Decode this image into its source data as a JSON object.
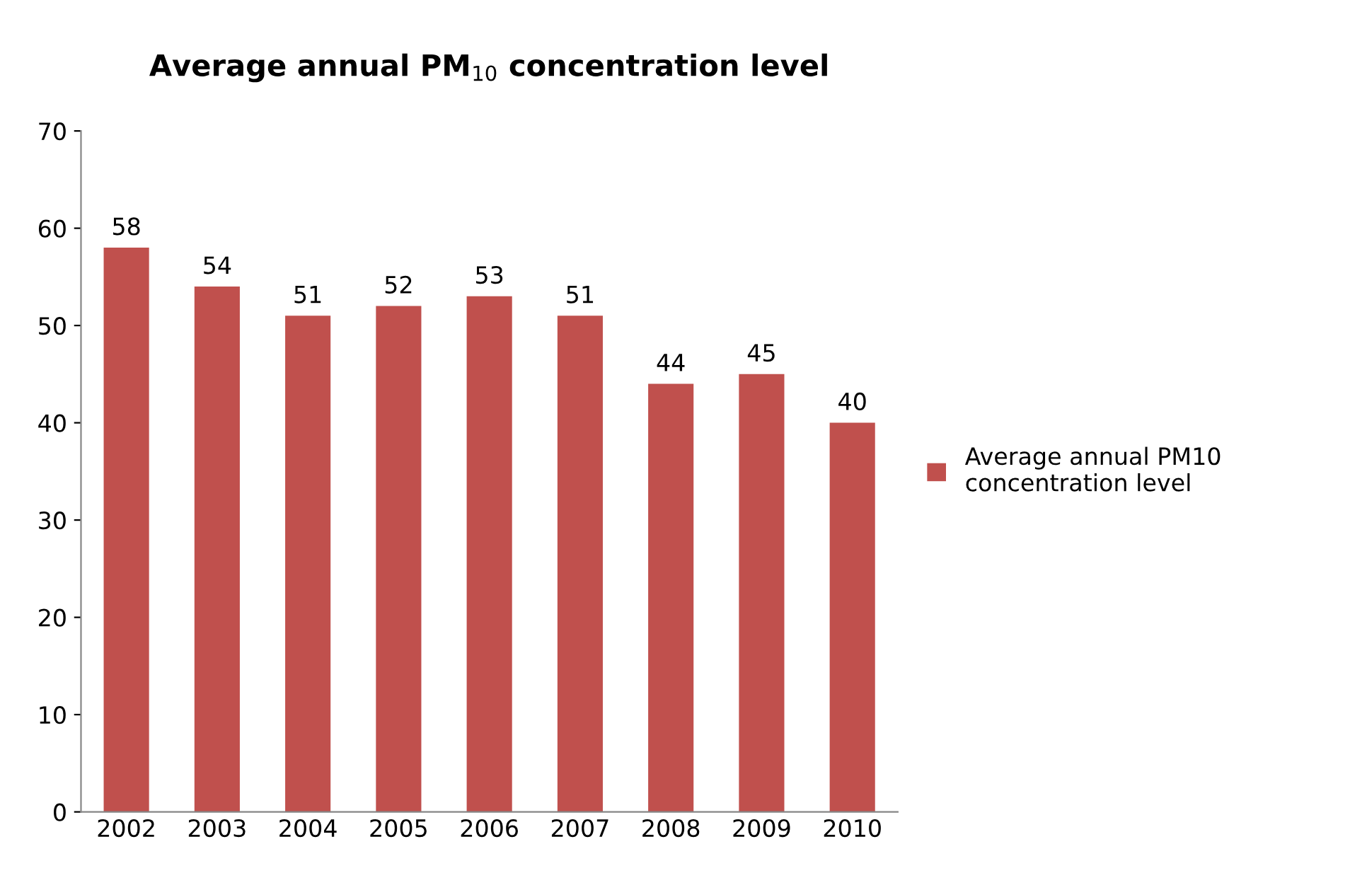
{
  "chart_data": {
    "type": "bar",
    "title": "Average annual PM$_{10}$ concentration level",
    "categories": [
      "2002",
      "2003",
      "2004",
      "2005",
      "2006",
      "2007",
      "2008",
      "2009",
      "2010"
    ],
    "series": [
      {
        "name": "Average annual PM10 concentration level",
        "color": "#c0504d",
        "values": [
          58,
          54,
          51,
          52,
          53,
          51,
          44,
          45,
          40
        ]
      }
    ],
    "ylim": [
      0,
      70
    ],
    "yticks": [
      0,
      10,
      20,
      30,
      40,
      50,
      60,
      70
    ],
    "data_labels": true,
    "grid": false,
    "legend": "right"
  }
}
